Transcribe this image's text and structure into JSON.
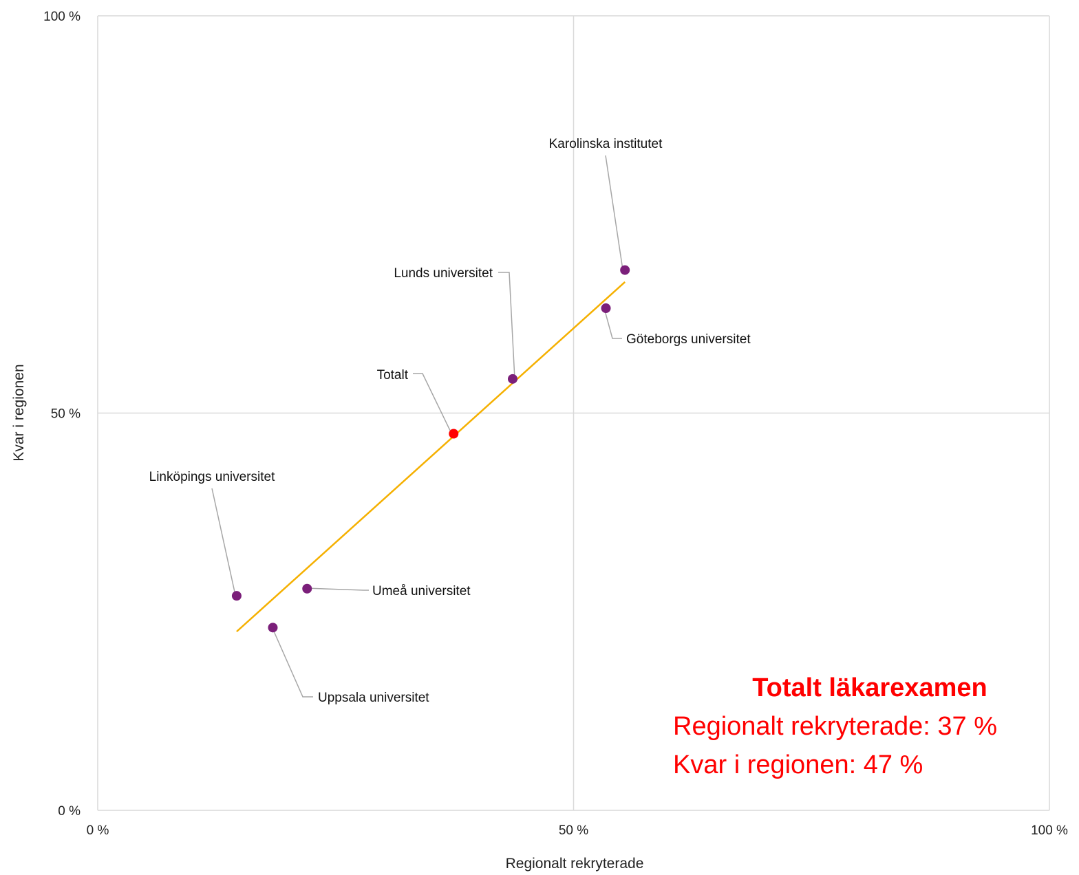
{
  "chart_data": {
    "type": "scatter",
    "xlabel": "Regionalt rekryterade",
    "ylabel": "Kvar i regionen",
    "xlim": [
      0,
      100
    ],
    "ylim": [
      0,
      100
    ],
    "x_ticks": [
      "0 %",
      "50 %",
      "100 %"
    ],
    "y_ticks": [
      "0 %",
      "50 %",
      "100 %"
    ],
    "grid": true,
    "points": [
      {
        "label": "Karolinska institutet",
        "x": 55.4,
        "y": 68.0,
        "color": "#7B1F7A"
      },
      {
        "label": "Göteborgs universitet",
        "x": 53.4,
        "y": 63.2,
        "color": "#7B1F7A"
      },
      {
        "label": "Lunds universitet",
        "x": 43.6,
        "y": 54.3,
        "color": "#7B1F7A"
      },
      {
        "label": "Totalt",
        "x": 37.4,
        "y": 47.4,
        "color": "#FF0000"
      },
      {
        "label": "Linköpings universitet",
        "x": 14.6,
        "y": 27.0,
        "color": "#7B1F7A"
      },
      {
        "label": "Umeå universitet",
        "x": 22.0,
        "y": 27.9,
        "color": "#7B1F7A"
      },
      {
        "label": "Uppsala universitet",
        "x": 18.4,
        "y": 23.0,
        "color": "#7B1F7A"
      }
    ],
    "trendline": {
      "x": [
        14.6,
        55.4
      ],
      "y": [
        22.5,
        66.5
      ],
      "color": "#F5B000"
    },
    "summary": {
      "title": "Totalt läkarexamen",
      "line1": "Regionalt rekryterade: 37 %",
      "line2": "Kvar i regionen: 47 %",
      "color": "#FF0000"
    }
  }
}
